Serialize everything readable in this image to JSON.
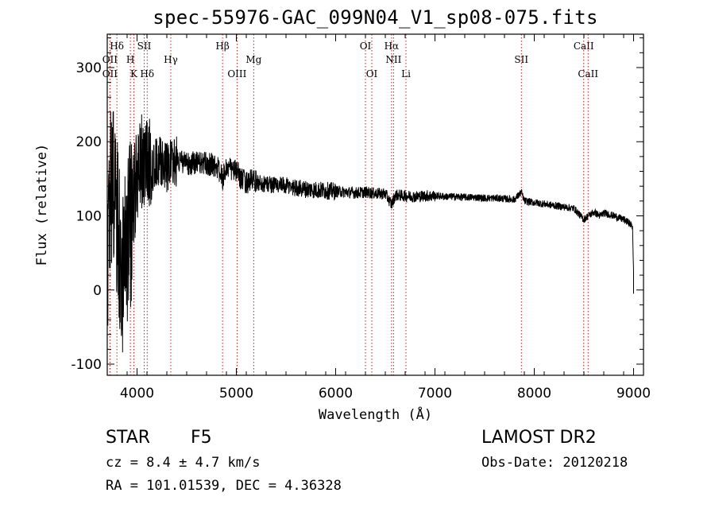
{
  "header": {
    "title": "spec-55976-GAC_099N04_V1_sp08-075.fits"
  },
  "info": {
    "object_type": "STAR",
    "object_class": "F5",
    "survey": "LAMOST DR2",
    "cz_line": "cz = 8.4 ± 4.7 km/s",
    "obsdate_line": "Obs-Date: 20120218",
    "radec_line": "RA = 101.01539, DEC =   4.36328"
  },
  "chart_data": {
    "type": "line",
    "xlabel": "Wavelength (Å)",
    "ylabel": "Flux (relative)",
    "xlim": [
      3700,
      9100
    ],
    "ylim": [
      -115,
      345
    ],
    "x_ticks": [
      4000,
      5000,
      6000,
      7000,
      8000,
      9000
    ],
    "y_ticks": [
      -100,
      0,
      100,
      200,
      300
    ],
    "grid": false,
    "line_color": "#000000",
    "marker_color": "#cc0000",
    "spectrum_anchors": [
      [
        3700,
        60
      ],
      [
        3730,
        120
      ],
      [
        3760,
        150
      ],
      [
        3790,
        100
      ],
      [
        3820,
        60
      ],
      [
        3850,
        30
      ],
      [
        3880,
        40
      ],
      [
        3900,
        60
      ],
      [
        3930,
        90
      ],
      [
        3960,
        120
      ],
      [
        4000,
        150
      ],
      [
        4050,
        170
      ],
      [
        4100,
        160
      ],
      [
        4150,
        165
      ],
      [
        4200,
        175
      ],
      [
        4250,
        170
      ],
      [
        4300,
        165
      ],
      [
        4350,
        170
      ],
      [
        4400,
        175
      ],
      [
        4500,
        170
      ],
      [
        4600,
        172
      ],
      [
        4700,
        170
      ],
      [
        4800,
        168
      ],
      [
        4861,
        150
      ],
      [
        4900,
        165
      ],
      [
        5000,
        160
      ],
      [
        5050,
        150
      ],
      [
        5100,
        145
      ],
      [
        5150,
        148
      ],
      [
        5200,
        145
      ],
      [
        5300,
        143
      ],
      [
        5400,
        142
      ],
      [
        5500,
        140
      ],
      [
        5600,
        138
      ],
      [
        5700,
        136
      ],
      [
        5800,
        135
      ],
      [
        5900,
        134
      ],
      [
        6000,
        133
      ],
      [
        6100,
        132
      ],
      [
        6200,
        131
      ],
      [
        6300,
        132
      ],
      [
        6400,
        130
      ],
      [
        6500,
        130
      ],
      [
        6563,
        115
      ],
      [
        6600,
        128
      ],
      [
        6700,
        127
      ],
      [
        6800,
        126
      ],
      [
        6900,
        127
      ],
      [
        7000,
        127
      ],
      [
        7100,
        126
      ],
      [
        7200,
        126
      ],
      [
        7300,
        125
      ],
      [
        7400,
        125
      ],
      [
        7500,
        124
      ],
      [
        7600,
        124
      ],
      [
        7700,
        123
      ],
      [
        7800,
        122
      ],
      [
        7870,
        132
      ],
      [
        7900,
        120
      ],
      [
        8000,
        118
      ],
      [
        8100,
        116
      ],
      [
        8200,
        114
      ],
      [
        8300,
        112
      ],
      [
        8400,
        110
      ],
      [
        8498,
        95
      ],
      [
        8542,
        100
      ],
      [
        8600,
        105
      ],
      [
        8662,
        100
      ],
      [
        8700,
        104
      ],
      [
        8800,
        100
      ],
      [
        8900,
        95
      ],
      [
        8960,
        90
      ],
      [
        8990,
        85
      ],
      [
        9000,
        20
      ]
    ],
    "line_markers": [
      {
        "label": "OII",
        "wavelength": 3727,
        "row": 1
      },
      {
        "label": "OII",
        "wavelength": 3727,
        "row": 3
      },
      {
        "label": "Hδ",
        "wavelength": 3797,
        "row": 0
      },
      {
        "label": "H",
        "wavelength": 3933,
        "row": 2
      },
      {
        "label": "K",
        "wavelength": 3968,
        "row": 3
      },
      {
        "label": "SII",
        "wavelength": 4072,
        "row": 0
      },
      {
        "label": "Hδ",
        "wavelength": 4102,
        "row": 3
      },
      {
        "label": "Hγ",
        "wavelength": 4340,
        "row": 1
      },
      {
        "label": "Hβ",
        "wavelength": 4861,
        "row": 0
      },
      {
        "label": "OIII",
        "wavelength": 5007,
        "row": 3
      },
      {
        "label": "Mg",
        "wavelength": 5175,
        "row": 2
      },
      {
        "label": "OI",
        "wavelength": 6300,
        "row": 0
      },
      {
        "label": "OI",
        "wavelength": 6364,
        "row": 3
      },
      {
        "label": "Hα",
        "wavelength": 6563,
        "row": 0
      },
      {
        "label": "NII",
        "wavelength": 6583,
        "row": 2
      },
      {
        "label": "Li",
        "wavelength": 6708,
        "row": 3
      },
      {
        "label": "SII",
        "wavelength": 7870,
        "row": 1
      },
      {
        "label": "CaII",
        "wavelength": 8498,
        "row": 0
      },
      {
        "label": "CaII",
        "wavelength": 8542,
        "row": 3
      }
    ]
  }
}
